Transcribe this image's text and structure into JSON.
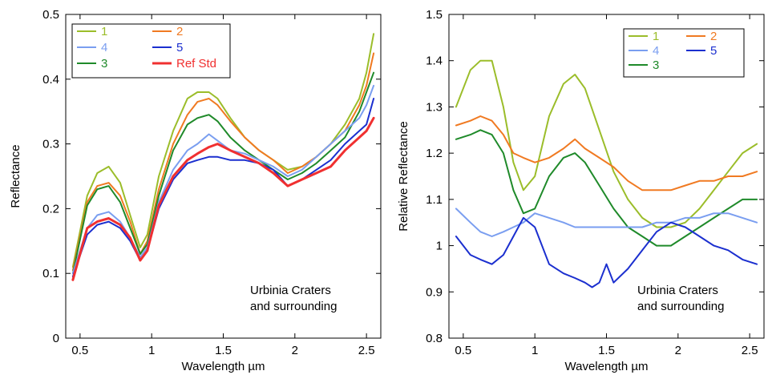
{
  "chart_data": [
    {
      "type": "line",
      "title": "",
      "xlabel": "Wavelength µm",
      "ylabel": "Reflectance",
      "xlim": [
        0.4,
        2.6
      ],
      "ylim": [
        0,
        0.5
      ],
      "x_ticks": [
        0.5,
        1,
        1.5,
        2,
        2.5
      ],
      "y_ticks": [
        0,
        0.1,
        0.2,
        0.3,
        0.4,
        0.5
      ],
      "x_tick_labels": [
        "0.5",
        "1",
        "1.5",
        "2",
        "2.5"
      ],
      "y_tick_labels": [
        "0",
        "0.1",
        "0.2",
        "0.3",
        "0.4",
        "0.5"
      ],
      "legend_position": "top-left",
      "annotation": [
        "Urbinia Craters",
        "and surrounding"
      ],
      "grid": false,
      "series": [
        {
          "name": "1",
          "color": "#9bbd2a",
          "x": [
            0.45,
            0.55,
            0.62,
            0.7,
            0.78,
            0.85,
            0.92,
            0.97,
            1.05,
            1.15,
            1.25,
            1.32,
            1.4,
            1.46,
            1.55,
            1.65,
            1.75,
            1.85,
            1.95,
            2.05,
            2.15,
            2.25,
            2.35,
            2.45,
            2.5,
            2.55
          ],
          "y": [
            0.11,
            0.22,
            0.255,
            0.265,
            0.24,
            0.19,
            0.14,
            0.16,
            0.25,
            0.32,
            0.37,
            0.38,
            0.38,
            0.37,
            0.34,
            0.31,
            0.29,
            0.275,
            0.26,
            0.265,
            0.28,
            0.3,
            0.33,
            0.37,
            0.41,
            0.47
          ]
        },
        {
          "name": "2",
          "color": "#f07a22",
          "x": [
            0.45,
            0.55,
            0.62,
            0.7,
            0.78,
            0.85,
            0.92,
            0.97,
            1.05,
            1.15,
            1.25,
            1.32,
            1.4,
            1.46,
            1.55,
            1.65,
            1.75,
            1.85,
            1.95,
            2.05,
            2.15,
            2.25,
            2.35,
            2.45,
            2.5,
            2.55
          ],
          "y": [
            0.105,
            0.21,
            0.235,
            0.24,
            0.22,
            0.18,
            0.13,
            0.15,
            0.23,
            0.3,
            0.345,
            0.365,
            0.37,
            0.36,
            0.335,
            0.31,
            0.29,
            0.275,
            0.255,
            0.265,
            0.28,
            0.3,
            0.32,
            0.36,
            0.39,
            0.44
          ]
        },
        {
          "name": "3",
          "color": "#1f8a2a",
          "x": [
            0.45,
            0.55,
            0.62,
            0.7,
            0.78,
            0.85,
            0.92,
            0.97,
            1.05,
            1.15,
            1.25,
            1.32,
            1.4,
            1.46,
            1.55,
            1.65,
            1.75,
            1.85,
            1.95,
            2.05,
            2.15,
            2.25,
            2.35,
            2.45,
            2.5,
            2.55
          ],
          "y": [
            0.1,
            0.205,
            0.23,
            0.235,
            0.21,
            0.17,
            0.13,
            0.145,
            0.22,
            0.29,
            0.33,
            0.34,
            0.345,
            0.335,
            0.31,
            0.29,
            0.275,
            0.26,
            0.245,
            0.255,
            0.27,
            0.29,
            0.31,
            0.35,
            0.38,
            0.41
          ]
        },
        {
          "name": "4",
          "color": "#7a9ef0",
          "x": [
            0.45,
            0.55,
            0.62,
            0.7,
            0.78,
            0.85,
            0.92,
            0.97,
            1.05,
            1.15,
            1.25,
            1.32,
            1.4,
            1.46,
            1.55,
            1.65,
            1.75,
            1.85,
            1.95,
            2.05,
            2.15,
            2.25,
            2.35,
            2.45,
            2.5,
            2.55
          ],
          "y": [
            0.1,
            0.17,
            0.19,
            0.195,
            0.18,
            0.155,
            0.125,
            0.14,
            0.21,
            0.26,
            0.29,
            0.3,
            0.315,
            0.305,
            0.29,
            0.285,
            0.275,
            0.265,
            0.25,
            0.26,
            0.28,
            0.3,
            0.32,
            0.34,
            0.36,
            0.39
          ]
        },
        {
          "name": "5",
          "color": "#1b2fcf",
          "x": [
            0.45,
            0.55,
            0.62,
            0.7,
            0.78,
            0.85,
            0.92,
            0.97,
            1.05,
            1.15,
            1.25,
            1.32,
            1.4,
            1.46,
            1.55,
            1.65,
            1.75,
            1.85,
            1.95,
            2.05,
            2.15,
            2.25,
            2.35,
            2.45,
            2.5,
            2.55
          ],
          "y": [
            0.095,
            0.16,
            0.175,
            0.18,
            0.17,
            0.15,
            0.12,
            0.135,
            0.2,
            0.245,
            0.27,
            0.275,
            0.28,
            0.28,
            0.275,
            0.275,
            0.27,
            0.26,
            0.235,
            0.245,
            0.26,
            0.275,
            0.3,
            0.32,
            0.33,
            0.37
          ]
        },
        {
          "name": "Ref Std",
          "color": "#f03030",
          "x": [
            0.45,
            0.55,
            0.62,
            0.7,
            0.78,
            0.85,
            0.92,
            0.97,
            1.05,
            1.15,
            1.25,
            1.32,
            1.4,
            1.46,
            1.55,
            1.65,
            1.75,
            1.85,
            1.95,
            2.05,
            2.15,
            2.25,
            2.35,
            2.45,
            2.5,
            2.55
          ],
          "y": [
            0.09,
            0.17,
            0.18,
            0.185,
            0.175,
            0.155,
            0.12,
            0.135,
            0.205,
            0.25,
            0.275,
            0.285,
            0.295,
            0.3,
            0.29,
            0.28,
            0.27,
            0.255,
            0.235,
            0.245,
            0.255,
            0.265,
            0.29,
            0.31,
            0.32,
            0.34
          ]
        }
      ]
    },
    {
      "type": "line",
      "title": "",
      "xlabel": "Wavelength µm",
      "ylabel": "Relative Reflectance",
      "xlim": [
        0.4,
        2.6
      ],
      "ylim": [
        0.8,
        1.5
      ],
      "x_ticks": [
        0.5,
        1,
        1.5,
        2,
        2.5
      ],
      "y_ticks": [
        0.8,
        0.9,
        1,
        1.1,
        1.2,
        1.3,
        1.4,
        1.5
      ],
      "x_tick_labels": [
        "0.5",
        "1",
        "1.5",
        "2",
        "2.5"
      ],
      "y_tick_labels": [
        "0.8",
        "0.9",
        "1",
        "1.1",
        "1.2",
        "1.3",
        "1.4",
        "1.5"
      ],
      "legend_position": "top-right",
      "annotation": [
        "Urbinia Craters",
        "and surrounding"
      ],
      "grid": false,
      "series": [
        {
          "name": "1",
          "color": "#9bbd2a",
          "x": [
            0.45,
            0.55,
            0.62,
            0.7,
            0.78,
            0.85,
            0.92,
            1.0,
            1.1,
            1.2,
            1.28,
            1.35,
            1.45,
            1.55,
            1.65,
            1.75,
            1.85,
            1.95,
            2.05,
            2.15,
            2.25,
            2.35,
            2.45,
            2.55
          ],
          "y": [
            1.3,
            1.38,
            1.4,
            1.4,
            1.3,
            1.18,
            1.12,
            1.15,
            1.28,
            1.35,
            1.37,
            1.34,
            1.25,
            1.16,
            1.1,
            1.06,
            1.04,
            1.04,
            1.05,
            1.08,
            1.12,
            1.16,
            1.2,
            1.22
          ]
        },
        {
          "name": "2",
          "color": "#f07a22",
          "x": [
            0.45,
            0.55,
            0.62,
            0.7,
            0.78,
            0.85,
            0.92,
            1.0,
            1.1,
            1.2,
            1.28,
            1.35,
            1.45,
            1.55,
            1.65,
            1.75,
            1.85,
            1.95,
            2.05,
            2.15,
            2.25,
            2.35,
            2.45,
            2.55
          ],
          "y": [
            1.26,
            1.27,
            1.28,
            1.27,
            1.24,
            1.2,
            1.19,
            1.18,
            1.19,
            1.21,
            1.23,
            1.21,
            1.19,
            1.17,
            1.14,
            1.12,
            1.12,
            1.12,
            1.13,
            1.14,
            1.14,
            1.15,
            1.15,
            1.16
          ]
        },
        {
          "name": "3",
          "color": "#1f8a2a",
          "x": [
            0.45,
            0.55,
            0.62,
            0.7,
            0.78,
            0.85,
            0.92,
            1.0,
            1.1,
            1.2,
            1.28,
            1.35,
            1.45,
            1.55,
            1.65,
            1.75,
            1.85,
            1.95,
            2.05,
            2.15,
            2.25,
            2.35,
            2.45,
            2.55
          ],
          "y": [
            1.23,
            1.24,
            1.25,
            1.24,
            1.2,
            1.12,
            1.07,
            1.08,
            1.15,
            1.19,
            1.2,
            1.18,
            1.13,
            1.08,
            1.04,
            1.02,
            1.0,
            1.0,
            1.02,
            1.04,
            1.06,
            1.08,
            1.1,
            1.1
          ]
        },
        {
          "name": "4",
          "color": "#7a9ef0",
          "x": [
            0.45,
            0.55,
            0.62,
            0.7,
            0.78,
            0.85,
            0.92,
            1.0,
            1.1,
            1.2,
            1.28,
            1.35,
            1.45,
            1.55,
            1.65,
            1.75,
            1.85,
            1.95,
            2.05,
            2.15,
            2.25,
            2.35,
            2.45,
            2.55
          ],
          "y": [
            1.08,
            1.05,
            1.03,
            1.02,
            1.03,
            1.04,
            1.05,
            1.07,
            1.06,
            1.05,
            1.04,
            1.04,
            1.04,
            1.04,
            1.04,
            1.04,
            1.05,
            1.05,
            1.06,
            1.06,
            1.07,
            1.07,
            1.06,
            1.05
          ]
        },
        {
          "name": "5",
          "color": "#1b2fcf",
          "x": [
            0.45,
            0.55,
            0.62,
            0.7,
            0.78,
            0.85,
            0.92,
            1.0,
            1.1,
            1.2,
            1.28,
            1.35,
            1.4,
            1.45,
            1.5,
            1.55,
            1.65,
            1.75,
            1.85,
            1.95,
            2.05,
            2.15,
            2.25,
            2.35,
            2.45,
            2.55
          ],
          "y": [
            1.02,
            0.98,
            0.97,
            0.96,
            0.98,
            1.02,
            1.06,
            1.04,
            0.96,
            0.94,
            0.93,
            0.92,
            0.91,
            0.92,
            0.96,
            0.92,
            0.95,
            0.99,
            1.03,
            1.05,
            1.04,
            1.02,
            1.0,
            0.99,
            0.97,
            0.96
          ]
        }
      ]
    }
  ]
}
